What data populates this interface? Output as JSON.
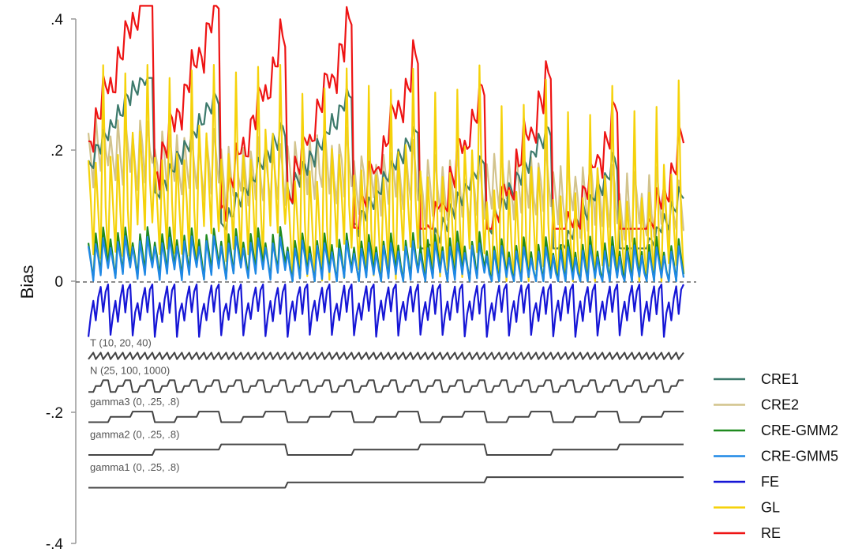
{
  "chart_data": {
    "type": "line",
    "title": "",
    "xlabel": "",
    "ylabel": "Bias",
    "ylim": [
      -0.4,
      0.4
    ],
    "yticks": [
      {
        "value": 0.4,
        "label": ".4"
      },
      {
        "value": 0.2,
        "label": ".2"
      },
      {
        "value": 0.0,
        "label": "0"
      },
      {
        "value": -0.2,
        "label": "-.2"
      },
      {
        "value": -0.4,
        "label": "-.4"
      }
    ],
    "zero_line": "dashed",
    "grid": false,
    "legend_position": "right",
    "n_points": 243,
    "colors": {
      "CRE1": "#3d7a6c",
      "CRE2": "#d2c38c",
      "CRE-GMM2": "#1f8a1f",
      "CRE-GMM5": "#1f88e5",
      "FE": "#1616d6",
      "GL": "#f5d20a",
      "RE": "#ee1414",
      "design": "#444444"
    },
    "series_summary": [
      {
        "name": "CRE1",
        "approx_range": [
          0.05,
          0.31
        ]
      },
      {
        "name": "CRE2",
        "approx_range": [
          0.03,
          0.28
        ]
      },
      {
        "name": "CRE-GMM2",
        "approx_range": [
          0.0,
          0.09
        ]
      },
      {
        "name": "CRE-GMM5",
        "approx_range": [
          0.0,
          0.07
        ]
      },
      {
        "name": "FE",
        "approx_range": [
          -0.085,
          -0.005
        ]
      },
      {
        "name": "GL",
        "approx_range": [
          0.0,
          0.33
        ]
      },
      {
        "name": "RE",
        "approx_range": [
          0.08,
          0.42
        ]
      }
    ],
    "design_factors": [
      {
        "label": "T (10, 20, 40)",
        "levels": [
          10,
          20,
          40
        ]
      },
      {
        "label": "N (25, 100, 1000)",
        "levels": [
          25,
          100,
          1000
        ]
      },
      {
        "label": "gamma3 (0, .25, .8)",
        "levels": [
          0,
          0.25,
          0.8
        ]
      },
      {
        "label": "gamma2 (0, .25, .8)",
        "levels": [
          0,
          0.25,
          0.8
        ]
      },
      {
        "label": "gamma1 (0, .25, .8)",
        "levels": [
          0,
          0.25,
          0.8
        ]
      }
    ],
    "legend": [
      "CRE1",
      "CRE2",
      "CRE-GMM2",
      "CRE-GMM5",
      "FE",
      "GL",
      "RE"
    ]
  }
}
